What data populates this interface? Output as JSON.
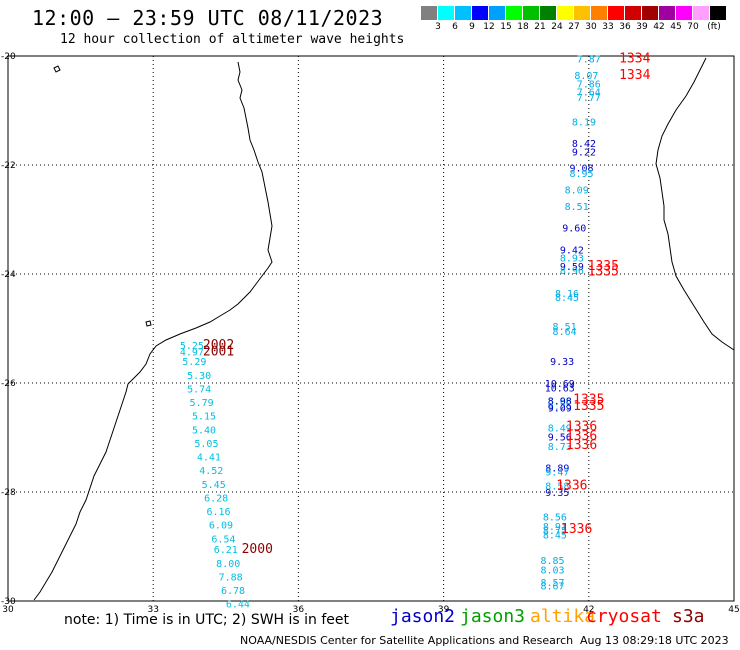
{
  "header": {
    "title": "12:00 – 23:59 UTC 08/11/2023",
    "subtitle": "12 hour collection of altimeter wave heights"
  },
  "color_scale": {
    "unit": "(ft)",
    "swatches": [
      "#808080",
      "#00ffff",
      "#00c0ff",
      "#0000ff",
      "#00a0ff",
      "#00ff00",
      "#00c000",
      "#008000",
      "#ffff00",
      "#ffc000",
      "#ff8000",
      "#ff0000",
      "#d00000",
      "#a00000",
      "#a000a0",
      "#ff00ff",
      "#ffa0ff",
      "#000000"
    ],
    "labels": [
      "3",
      "6",
      "9",
      "12",
      "15",
      "18",
      "21",
      "24",
      "27",
      "30",
      "33",
      "36",
      "39",
      "42",
      "45",
      "70"
    ]
  },
  "axes": {
    "x_ticks": [
      "30",
      "33",
      "36",
      "39",
      "42",
      "45"
    ],
    "y_ticks": [
      "-20",
      "-22",
      "-24",
      "-26",
      "-28",
      "-30"
    ]
  },
  "colors": {
    "jason2": "#0000c8",
    "jason3": "#00a000",
    "altika": "#ffa000",
    "cryosat": "#ff0000",
    "s3a": "#8b0000",
    "cyan": "#00c0e0",
    "blue": "#0050d0"
  },
  "observations": [
    {
      "t": "7.87",
      "c": "#00b0e8",
      "lon": 42.0,
      "lat": -20.05
    },
    {
      "t": "1334",
      "c": "#ff0000",
      "lon": 42.95,
      "lat": -20.05,
      "big": true
    },
    {
      "t": "8.07",
      "c": "#00b0e8",
      "lon": 41.95,
      "lat": -20.35
    },
    {
      "t": "1334",
      "c": "#ff0000",
      "lon": 42.95,
      "lat": -20.35,
      "big": true
    },
    {
      "t": "7.86",
      "c": "#00b0e8",
      "lon": 42.0,
      "lat": -20.5
    },
    {
      "t": "7.64",
      "c": "#00b0e8",
      "lon": 42.0,
      "lat": -20.65
    },
    {
      "t": "7.77",
      "c": "#00b0e8",
      "lon": 42.0,
      "lat": -20.75
    },
    {
      "t": "8.19",
      "c": "#00b0e8",
      "lon": 41.9,
      "lat": -21.2
    },
    {
      "t": "8.42",
      "c": "#0000c8",
      "lon": 41.9,
      "lat": -21.6
    },
    {
      "t": "9.22",
      "c": "#0000c8",
      "lon": 41.9,
      "lat": -21.75
    },
    {
      "t": "9.08",
      "c": "#0000c8",
      "lon": 41.85,
      "lat": -22.05
    },
    {
      "t": "8.95",
      "c": "#00b0e8",
      "lon": 41.85,
      "lat": -22.15
    },
    {
      "t": "8.09",
      "c": "#00b0e8",
      "lon": 41.75,
      "lat": -22.45
    },
    {
      "t": "8.51",
      "c": "#00b0e8",
      "lon": 41.75,
      "lat": -22.75
    },
    {
      "t": "9.60",
      "c": "#0000c8",
      "lon": 41.7,
      "lat": -23.15
    },
    {
      "t": "9.42",
      "c": "#0000c8",
      "lon": 41.65,
      "lat": -23.55
    },
    {
      "t": "8.93",
      "c": "#00b0e8",
      "lon": 41.65,
      "lat": -23.7
    },
    {
      "t": "9.59",
      "c": "#0000c8",
      "lon": 41.65,
      "lat": -23.85
    },
    {
      "t": "8.96",
      "c": "#00b0e8",
      "lon": 41.65,
      "lat": -23.93
    },
    {
      "t": "1335",
      "c": "#ff0000",
      "lon": 42.3,
      "lat": -23.85,
      "big": true
    },
    {
      "t": "1335",
      "c": "#ff0000",
      "lon": 42.3,
      "lat": -23.95,
      "big": true
    },
    {
      "t": "8.16",
      "c": "#00b0e8",
      "lon": 41.55,
      "lat": -24.35
    },
    {
      "t": "8.45",
      "c": "#00b0e8",
      "lon": 41.55,
      "lat": -24.42
    },
    {
      "t": "8.51",
      "c": "#00b0e8",
      "lon": 41.5,
      "lat": -24.95
    },
    {
      "t": "8.64",
      "c": "#00b0e8",
      "lon": 41.5,
      "lat": -25.05
    },
    {
      "t": "9.33",
      "c": "#0000c8",
      "lon": 41.45,
      "lat": -25.6
    },
    {
      "t": "10.69",
      "c": "#0000c8",
      "lon": 41.4,
      "lat": -26.0
    },
    {
      "t": "10.63",
      "c": "#0000c8",
      "lon": 41.4,
      "lat": -26.08
    },
    {
      "t": "8.66",
      "c": "#00b0e8",
      "lon": 41.4,
      "lat": -26.32
    },
    {
      "t": "8.98",
      "c": "#0000c8",
      "lon": 41.4,
      "lat": -26.32
    },
    {
      "t": "9.25",
      "c": "#00b0e8",
      "lon": 41.4,
      "lat": -26.42
    },
    {
      "t": "9.09",
      "c": "#0000c8",
      "lon": 41.4,
      "lat": -26.45
    },
    {
      "t": "1335",
      "c": "#ff0000",
      "lon": 42.0,
      "lat": -26.3,
      "big": true
    },
    {
      "t": "1335",
      "c": "#ff0000",
      "lon": 42.0,
      "lat": -26.42,
      "big": true
    },
    {
      "t": "8.49",
      "c": "#00b0e8",
      "lon": 41.4,
      "lat": -26.82
    },
    {
      "t": "9.56",
      "c": "#0000c8",
      "lon": 41.4,
      "lat": -26.98
    },
    {
      "t": "8.73",
      "c": "#00b0e8",
      "lon": 41.4,
      "lat": -27.16
    },
    {
      "t": "1336",
      "c": "#ff0000",
      "lon": 41.85,
      "lat": -26.8,
      "big": true
    },
    {
      "t": "1336",
      "c": "#ff0000",
      "lon": 41.85,
      "lat": -26.97,
      "big": true
    },
    {
      "t": "1336",
      "c": "#ff0000",
      "lon": 41.85,
      "lat": -27.14,
      "big": true
    },
    {
      "t": "8.89",
      "c": "#0000c8",
      "lon": 41.35,
      "lat": -27.55
    },
    {
      "t": "9.47",
      "c": "#00b0e8",
      "lon": 41.35,
      "lat": -27.62
    },
    {
      "t": "8.58",
      "c": "#00b0e8",
      "lon": 41.35,
      "lat": -27.88
    },
    {
      "t": "9.35",
      "c": "#0000c8",
      "lon": 41.35,
      "lat": -28.0
    },
    {
      "t": "1336",
      "c": "#ff0000",
      "lon": 41.65,
      "lat": -27.88,
      "big": true
    },
    {
      "t": "8.56",
      "c": "#00b0e8",
      "lon": 41.3,
      "lat": -28.45
    },
    {
      "t": "8.91",
      "c": "#00b0e8",
      "lon": 41.3,
      "lat": -28.62
    },
    {
      "t": "8.75",
      "c": "#00b0e8",
      "lon": 41.3,
      "lat": -28.7
    },
    {
      "t": "8.45",
      "c": "#00b0e8",
      "lon": 41.3,
      "lat": -28.78
    },
    {
      "t": "1336",
      "c": "#ff0000",
      "lon": 41.75,
      "lat": -28.68,
      "big": true
    },
    {
      "t": "8.85",
      "c": "#00b0e8",
      "lon": 41.25,
      "lat": -29.25
    },
    {
      "t": "8.03",
      "c": "#00b0e8",
      "lon": 41.25,
      "lat": -29.42
    },
    {
      "t": "8.57",
      "c": "#00b0e8",
      "lon": 41.25,
      "lat": -29.65
    },
    {
      "t": "8.67",
      "c": "#00b0e8",
      "lon": 41.25,
      "lat": -29.72
    },
    {
      "t": "5.25",
      "c": "#00c0e0",
      "lon": 33.8,
      "lat": -25.3
    },
    {
      "t": "4.97",
      "c": "#00c0e0",
      "lon": 33.8,
      "lat": -25.42
    },
    {
      "t": "2002",
      "c": "#8b0000",
      "lon": 34.35,
      "lat": -25.3,
      "big": true
    },
    {
      "t": "2001",
      "c": "#8b0000",
      "lon": 34.35,
      "lat": -25.42,
      "big": true
    },
    {
      "t": "5.29",
      "c": "#00c0e0",
      "lon": 33.85,
      "lat": -25.6
    },
    {
      "t": "5.30",
      "c": "#00c0e0",
      "lon": 33.95,
      "lat": -25.85
    },
    {
      "t": "5.74",
      "c": "#00c0e0",
      "lon": 33.95,
      "lat": -26.1
    },
    {
      "t": "5.79",
      "c": "#00c0e0",
      "lon": 34.0,
      "lat": -26.35
    },
    {
      "t": "5.15",
      "c": "#00c0e0",
      "lon": 34.05,
      "lat": -26.6
    },
    {
      "t": "5.40",
      "c": "#00c0e0",
      "lon": 34.05,
      "lat": -26.85
    },
    {
      "t": "5.05",
      "c": "#00c0e0",
      "lon": 34.1,
      "lat": -27.1
    },
    {
      "t": "4.41",
      "c": "#00c0e0",
      "lon": 34.15,
      "lat": -27.35
    },
    {
      "t": "4.52",
      "c": "#00c0e0",
      "lon": 34.2,
      "lat": -27.6
    },
    {
      "t": "5.45",
      "c": "#00c0e0",
      "lon": 34.25,
      "lat": -27.85
    },
    {
      "t": "6.28",
      "c": "#00c0e0",
      "lon": 34.3,
      "lat": -28.1
    },
    {
      "t": "6.16",
      "c": "#00c0e0",
      "lon": 34.35,
      "lat": -28.35
    },
    {
      "t": "6.09",
      "c": "#00c0e0",
      "lon": 34.4,
      "lat": -28.6
    },
    {
      "t": "6.54",
      "c": "#00c0e0",
      "lon": 34.45,
      "lat": -28.85
    },
    {
      "t": "6.21",
      "c": "#00c0e0",
      "lon": 34.5,
      "lat": -29.05
    },
    {
      "t": "2000",
      "c": "#8b0000",
      "lon": 35.15,
      "lat": -29.05,
      "big": true
    },
    {
      "t": "8.00",
      "c": "#00c0e0",
      "lon": 34.55,
      "lat": -29.3
    },
    {
      "t": "7.88",
      "c": "#00c0e0",
      "lon": 34.6,
      "lat": -29.55
    },
    {
      "t": "6.78",
      "c": "#00c0e0",
      "lon": 34.65,
      "lat": -29.8
    },
    {
      "t": "6.44",
      "c": "#00c0e0",
      "lon": 34.75,
      "lat": -30.05
    }
  ],
  "footer": {
    "note": "note:  1) Time is in UTC;  2) SWH is in feet",
    "legend": [
      {
        "label": "jason2",
        "color": "#0000c8"
      },
      {
        "label": "jason3",
        "color": "#00a000"
      },
      {
        "label": "altika",
        "color": "#ffa000"
      },
      {
        "label": "cryosat",
        "color": "#ff0000"
      },
      {
        "label": "s3a",
        "color": "#8b0000"
      }
    ],
    "credit": "NOAA/NESDIS Center for Satellite Applications and Research",
    "timestamp": "Aug 13 08:29:18 UTC 2023"
  }
}
